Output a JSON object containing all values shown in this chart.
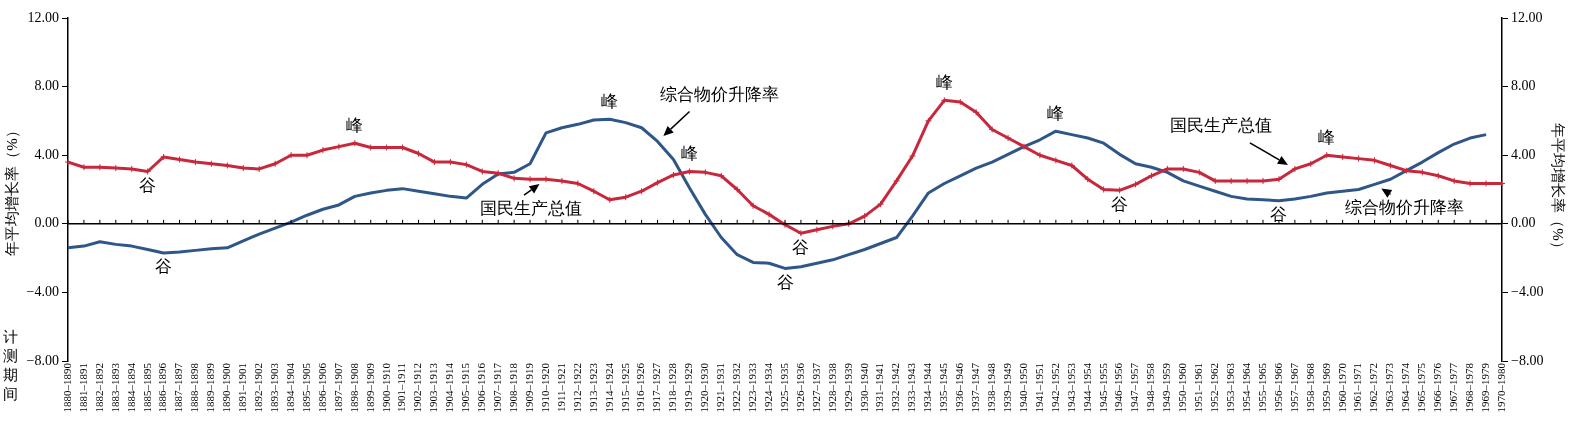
{
  "chart_data": {
    "type": "line",
    "ylabel": "年平均增长率（%）",
    "y2label": "年平均增长率（%）",
    "xlabel": "计测期间",
    "categories": [
      "1880–1890",
      "1881–1891",
      "1882–1892",
      "1883–1893",
      "1884–1894",
      "1885–1895",
      "1886–1896",
      "1887–1897",
      "1888–1898",
      "1889–1899",
      "1890–1900",
      "1891–1901",
      "1892–1902",
      "1893–1903",
      "1894–1904",
      "1895–1905",
      "1896–1906",
      "1897–1907",
      "1898–1908",
      "1899–1909",
      "1900–1910",
      "1901–1911",
      "1902–1912",
      "1903–1913",
      "1904–1914",
      "1905–1915",
      "1906–1916",
      "1907–1917",
      "1908–1918",
      "1909–1919",
      "1910–1920",
      "1911–1921",
      "1912–1922",
      "1913–1923",
      "1914–1924",
      "1915–1925",
      "1916–1926",
      "1917–1927",
      "1918–1928",
      "1919–1929",
      "1920–1930",
      "1921–1931",
      "1922–1932",
      "1923–1933",
      "1924–1934",
      "1925–1935",
      "1926–1936",
      "1927–1937",
      "1928–1938",
      "1929–1939",
      "1930–1940",
      "1931–1941",
      "1932–1942",
      "1933–1943",
      "1934–1944",
      "1935–1945",
      "1936–1946",
      "1937–1947",
      "1938–1948",
      "1939–1949",
      "1940–1950",
      "1941–1951",
      "1942–1952",
      "1943–1953",
      "1944–1954",
      "1945–1955",
      "1946–1956",
      "1947–1957",
      "1948–1958",
      "1949–1959",
      "1950–1960",
      "1951–1961",
      "1952–1962",
      "1953–1963",
      "1954–1964",
      "1955–1965",
      "1956–1966",
      "1957–1967",
      "1958–1968",
      "1959–1969",
      "1960–1970",
      "1961–1971",
      "1962–1972",
      "1963–1973",
      "1964–1974",
      "1965–1975",
      "1966–1976",
      "1967–1977",
      "1968–1978",
      "1969–1979",
      "1970–1980"
    ],
    "series": [
      {
        "color": "#c8283c",
        "marker": "cross",
        "values": [
          3.6,
          3.3,
          3.3,
          3.25,
          3.2,
          3.05,
          3.9,
          3.75,
          3.6,
          3.5,
          3.4,
          3.25,
          3.2,
          3.5,
          4.0,
          4.0,
          4.3,
          4.5,
          4.7,
          4.45,
          4.45,
          4.45,
          4.1,
          3.6,
          3.6,
          3.45,
          3.05,
          2.95,
          2.65,
          2.6,
          2.6,
          2.5,
          2.35,
          1.9,
          1.4,
          1.55,
          1.9,
          2.4,
          2.85,
          3.05,
          3.0,
          2.8,
          2.0,
          1.05,
          0.55,
          -0.05,
          -0.55,
          -0.35,
          -0.15,
          0.0,
          0.45,
          1.15,
          2.5,
          3.95,
          6.0,
          7.2,
          7.1,
          6.5,
          5.5,
          5.0,
          4.5,
          4.0,
          3.7,
          3.4,
          2.6,
          2.0,
          1.95,
          2.3,
          2.8,
          3.2,
          3.2,
          3.0,
          2.5,
          2.5,
          2.5,
          2.5,
          2.6,
          3.2,
          3.5,
          4.0,
          3.9,
          3.8,
          3.7,
          3.4,
          3.1,
          3.0,
          2.8,
          2.5,
          2.35,
          2.35,
          2.35
        ]
      },
      {
        "color": "#2f5689",
        "values": [
          -1.4,
          -1.3,
          -1.05,
          -1.2,
          -1.3,
          -1.5,
          -1.7,
          -1.65,
          -1.55,
          -1.45,
          -1.4,
          -1.0,
          -0.6,
          -0.25,
          0.1,
          0.5,
          0.85,
          1.1,
          1.6,
          1.8,
          1.95,
          2.05,
          1.9,
          1.75,
          1.6,
          1.5,
          2.3,
          2.9,
          3.0,
          3.5,
          5.3,
          5.6,
          5.8,
          6.05,
          6.1,
          5.9,
          5.6,
          4.8,
          3.75,
          2.1,
          0.55,
          -0.8,
          -1.8,
          -2.25,
          -2.3,
          -2.6,
          -2.5,
          -2.3,
          -2.1,
          -1.8,
          -1.5,
          -1.15,
          -0.8,
          0.45,
          1.8,
          2.35,
          2.8,
          3.25,
          3.6,
          4.05,
          4.5,
          4.9,
          5.4,
          5.2,
          5.0,
          4.7,
          4.05,
          3.5,
          3.3,
          3.0,
          2.5,
          2.2,
          1.9,
          1.6,
          1.45,
          1.4,
          1.35,
          1.45,
          1.6,
          1.8,
          1.9,
          2.0,
          2.3,
          2.6,
          3.1,
          3.6,
          4.15,
          4.65,
          5.0,
          5.2,
          null
        ]
      }
    ],
    "ylim": [
      -8,
      12
    ],
    "yticks": [
      {
        "value": -8,
        "label": "−8.00"
      },
      {
        "value": -4,
        "label": "−4.00"
      },
      {
        "value": 0,
        "label": "0.00"
      },
      {
        "value": 4,
        "label": "4.00"
      },
      {
        "value": 8,
        "label": "8.00"
      },
      {
        "value": 12,
        "label": "12.00"
      }
    ],
    "y2lim": [
      -8,
      12
    ],
    "y2ticks": [
      {
        "value": -8,
        "label": "−8.00"
      },
      {
        "value": -4,
        "label": "−4.00"
      },
      {
        "value": 0,
        "label": "0.00"
      },
      {
        "value": 4,
        "label": "4.00"
      },
      {
        "value": 8,
        "label": "8.00"
      },
      {
        "value": 12,
        "label": "12.00"
      }
    ],
    "ref_lines": [
      {
        "axis": "y",
        "value": 0,
        "color": "#000000"
      }
    ],
    "grid": false,
    "legend": false,
    "annotations": [
      {
        "text": "谷",
        "x": "1885–1895",
        "y": 3.05
      },
      {
        "text": "峰",
        "x": "1898–1908",
        "y": 4.7
      },
      {
        "text": "谷",
        "x": "1886–1896",
        "y": -1.7
      },
      {
        "text": "峰",
        "x": "1914–1924",
        "y": 6.1
      },
      {
        "text": "综合物价升降率",
        "x": "1917–1927",
        "y": 4.8
      },
      {
        "text": "国民生产总值",
        "x": "1910–1920",
        "y": 2.6
      },
      {
        "text": "峰",
        "x": "1919–1929",
        "y": 3.05
      },
      {
        "text": "谷",
        "x": "1926–1936",
        "y": -0.55
      },
      {
        "text": "谷",
        "x": "1925–1935",
        "y": -2.6
      },
      {
        "text": "峰",
        "x": "1935–1945",
        "y": 7.2
      },
      {
        "text": "峰",
        "x": "1942–1952",
        "y": 5.4
      },
      {
        "text": "谷",
        "x": "1946–1956",
        "y": 1.95
      },
      {
        "text": "谷",
        "x": "1956–1966",
        "y": 1.35
      },
      {
        "text": "国民生产总值",
        "x": "1957–1967",
        "y": 3.2
      },
      {
        "text": "峰",
        "x": "1959–1969",
        "y": 4.0
      },
      {
        "text": "综合物价升降率",
        "x": "1962–1972",
        "y": 2.3
      }
    ]
  }
}
